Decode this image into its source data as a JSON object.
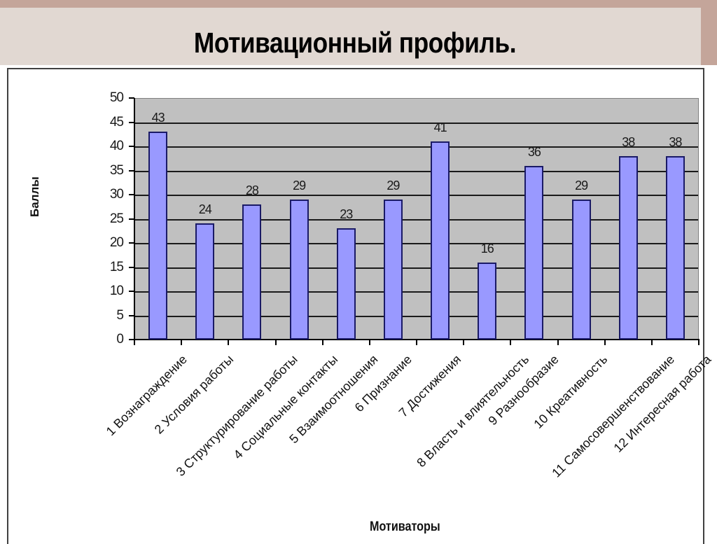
{
  "slide": {
    "title": "Мотивационный профиль.",
    "colors": {
      "title_band": "#e1d8d2",
      "accent_border": "#c4a59a",
      "plot_background": "#c0c0c0",
      "bar_fill": "#9999ff",
      "bar_border": "#1a1a66"
    }
  },
  "chart_data": {
    "type": "bar",
    "title": "",
    "xlabel": "Мотиваторы",
    "ylabel": "Баллы",
    "ylim": [
      0,
      50
    ],
    "yticks": [
      0,
      5,
      10,
      15,
      20,
      25,
      30,
      35,
      40,
      45,
      50
    ],
    "grid": true,
    "legend": null,
    "categories": [
      "1 Вознаграждение",
      "2 Условия работы",
      "3 Структурирование работы",
      "4 Социальные контакты",
      "5 Взаимоотношения",
      "6 Признание",
      "7 Достижения",
      "8 Власть и влиятельность",
      "9 Разнообразие",
      "10 Креативность",
      "11 Самосовершенствование",
      "12 Интересная работа"
    ],
    "values": [
      43,
      24,
      28,
      29,
      23,
      29,
      41,
      16,
      36,
      29,
      38,
      38
    ],
    "data_labels": [
      "43",
      "24",
      "28",
      "29",
      "23",
      "29",
      "41",
      "16",
      "36",
      "29",
      "38",
      "38"
    ]
  }
}
